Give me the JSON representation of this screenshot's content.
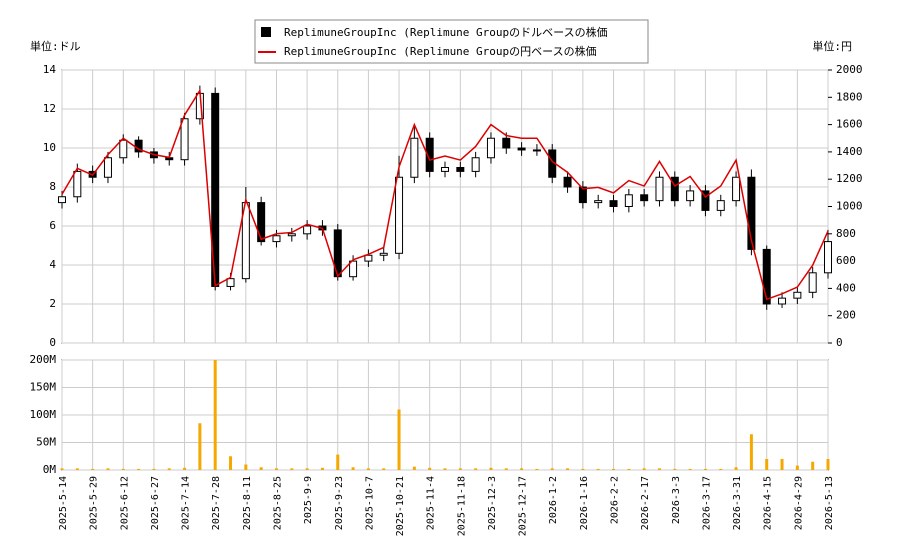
{
  "chart_data": [
    {
      "type": "candlestick",
      "y_label": "単位:ドル",
      "y2_label": "単位:円",
      "ylim": [
        0,
        14
      ],
      "yticks": [
        0,
        2,
        4,
        6,
        8,
        10,
        12,
        14
      ],
      "y2lim": [
        0,
        2000
      ],
      "y2ticks": [
        0,
        200,
        400,
        600,
        800,
        1000,
        1200,
        1400,
        1600,
        1800,
        2000
      ],
      "grid": true,
      "legend": "top",
      "series": [
        {
          "name": "ReplimuneGroupInc (Replimune Groupのドルベースの株価",
          "color": "#000000",
          "open": [
            7.2,
            7.5,
            8.8,
            8.5,
            9.5,
            10.4,
            9.8,
            9.5,
            9.4,
            11.5,
            12.8,
            2.9,
            3.3,
            7.2,
            5.2,
            5.5,
            5.6,
            6.0,
            5.8,
            3.4,
            4.2,
            4.5,
            4.6,
            8.5,
            10.5,
            8.8,
            9.0,
            8.8,
            9.5,
            10.5,
            10.0,
            9.9,
            9.9,
            8.5,
            8.0,
            7.2,
            7.3,
            7.0,
            7.6,
            7.3,
            8.5,
            7.3,
            7.8,
            6.8,
            7.3,
            8.5,
            4.8,
            2.0,
            2.3,
            2.6,
            3.6
          ],
          "high": [
            7.8,
            9.2,
            9.1,
            9.8,
            10.7,
            10.6,
            10.0,
            9.8,
            11.8,
            13.2,
            13.1,
            3.6,
            8.0,
            7.5,
            5.8,
            5.9,
            6.3,
            6.3,
            6.1,
            4.5,
            4.8,
            4.9,
            9.6,
            11.2,
            10.8,
            9.3,
            9.3,
            9.8,
            10.8,
            10.8,
            10.3,
            10.2,
            10.2,
            8.8,
            8.3,
            7.6,
            7.6,
            7.9,
            7.9,
            8.8,
            8.8,
            8.1,
            8.1,
            7.6,
            8.8,
            8.9,
            5.0,
            2.6,
            2.9,
            3.9,
            5.8
          ],
          "low": [
            6.9,
            7.2,
            8.2,
            8.2,
            9.2,
            9.5,
            9.2,
            9.1,
            9.1,
            11.2,
            2.7,
            2.7,
            3.1,
            5.0,
            4.9,
            5.2,
            5.3,
            5.5,
            3.2,
            3.2,
            3.9,
            4.2,
            4.3,
            8.2,
            8.5,
            8.5,
            8.5,
            8.5,
            9.2,
            9.7,
            9.6,
            9.6,
            8.2,
            7.7,
            6.9,
            6.9,
            6.7,
            6.7,
            7.0,
            7.0,
            7.0,
            7.0,
            6.5,
            6.5,
            7.0,
            4.5,
            1.7,
            1.8,
            2.0,
            2.3,
            3.3
          ],
          "close": [
            7.5,
            8.8,
            8.5,
            9.5,
            10.4,
            9.8,
            9.5,
            9.4,
            11.5,
            12.8,
            2.9,
            3.3,
            7.2,
            5.2,
            5.5,
            5.6,
            6.0,
            5.8,
            3.4,
            4.2,
            4.5,
            4.6,
            8.5,
            10.5,
            8.8,
            9.0,
            8.8,
            9.5,
            10.5,
            10.0,
            9.9,
            9.9,
            8.5,
            8.0,
            7.2,
            7.3,
            7.0,
            7.6,
            7.3,
            8.5,
            7.3,
            7.8,
            6.8,
            7.3,
            8.5,
            4.8,
            2.0,
            2.3,
            2.6,
            3.6,
            5.2
          ]
        },
        {
          "name": "ReplimuneGroupInc (Replimune Groupの円ベースの株価",
          "color": "#dd0000",
          "axis": "y2",
          "values": [
            1090,
            1280,
            1230,
            1380,
            1500,
            1420,
            1380,
            1360,
            1670,
            1850,
            420,
            480,
            1050,
            760,
            800,
            810,
            870,
            840,
            490,
            610,
            650,
            700,
            1290,
            1600,
            1340,
            1370,
            1340,
            1440,
            1600,
            1520,
            1500,
            1500,
            1330,
            1250,
            1130,
            1140,
            1100,
            1190,
            1150,
            1330,
            1150,
            1220,
            1070,
            1150,
            1340,
            750,
            320,
            360,
            410,
            570,
            820
          ]
        }
      ]
    },
    {
      "type": "bar",
      "categories": [
        "2025-5-14",
        null,
        "2025-5-29",
        null,
        "2025-6-12",
        null,
        "2025-6-27",
        null,
        "2025-7-14",
        null,
        "2025-7-28",
        null,
        "2025-8-11",
        null,
        "2025-8-25",
        null,
        "2025-9-9",
        null,
        "2025-9-23",
        null,
        "2025-10-7",
        null,
        "2025-10-21",
        null,
        "2025-11-4",
        null,
        "2025-11-18",
        null,
        "2025-12-3",
        null,
        "2025-12-17",
        null,
        "2026-1-2",
        null,
        "2026-1-16",
        null,
        "2026-2-2",
        null,
        "2026-2-17",
        null,
        "2026-3-3",
        null,
        "2026-3-17",
        null,
        "2026-3-31",
        null,
        "2026-4-15",
        null,
        "2026-4-29",
        null,
        "2026-5-13"
      ],
      "values": [
        3,
        3,
        2,
        3,
        2,
        2,
        2,
        3,
        4,
        85,
        200,
        25,
        10,
        5,
        3,
        3,
        3,
        4,
        28,
        5,
        3,
        3,
        110,
        6,
        4,
        3,
        3,
        3,
        4,
        3,
        3,
        2,
        3,
        3,
        2,
        2,
        2,
        2,
        3,
        3,
        2,
        2,
        2,
        2,
        5,
        65,
        20,
        20,
        8,
        15,
        20
      ],
      "color": "#f5a800",
      "ylim": [
        0,
        200
      ],
      "yticks": [
        {
          "value": 0,
          "label": "0M"
        },
        {
          "value": 50,
          "label": "50M"
        },
        {
          "value": 100,
          "label": "100M"
        },
        {
          "value": 150,
          "label": "150M"
        },
        {
          "value": 200,
          "label": "200M"
        }
      ],
      "grid": true
    }
  ]
}
